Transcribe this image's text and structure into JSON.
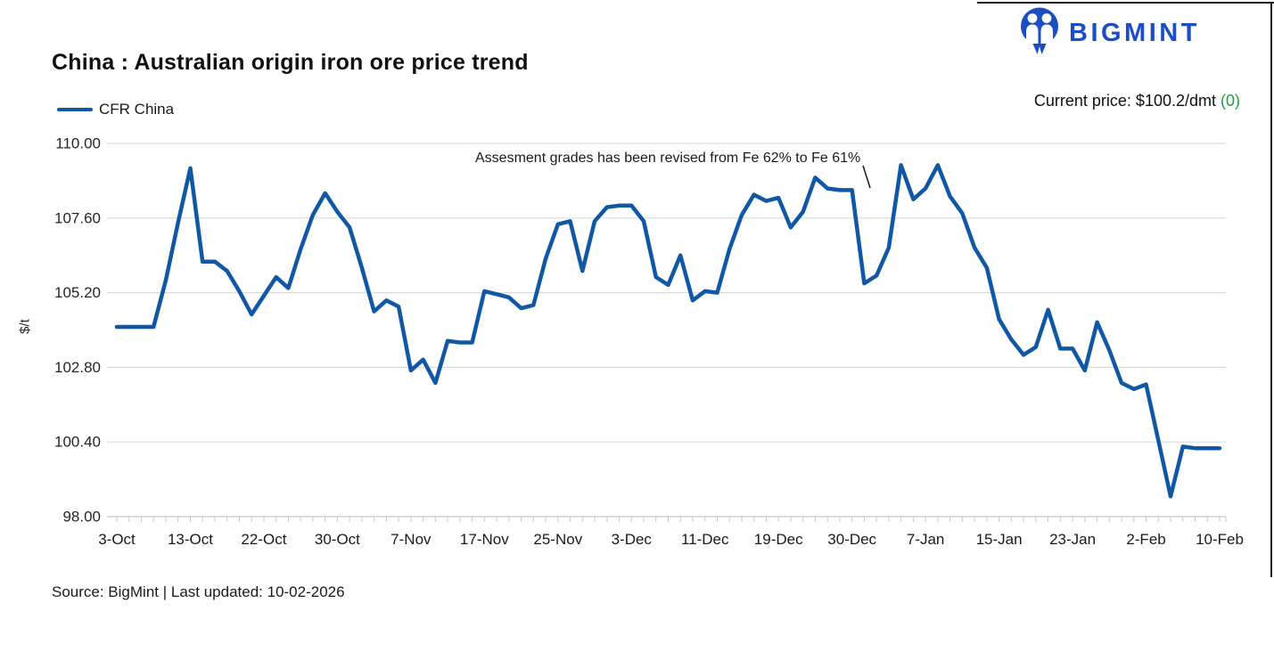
{
  "logo": {
    "brand": "BIGMINT"
  },
  "header": {
    "current_price_label": "Current price: $100.2/dmt ",
    "current_price_change": "(0)"
  },
  "footer": {
    "source": "Source: BigMint | Last updated: 10-02-2026"
  },
  "colors": {
    "line_blue": "#1057A5",
    "logo_blue": "#1B4DC4",
    "positive_green": "#21A038",
    "grid": "#DCDCDC",
    "axis": "#C8C8C8"
  },
  "chart_data": {
    "type": "line",
    "title": "China : Australian origin iron ore price trend",
    "ylabel": "$/t",
    "xlabel": "",
    "ylim": [
      98,
      110
    ],
    "yticks": [
      98,
      100.4,
      102.8,
      105.2,
      107.6,
      110
    ],
    "ytick_labels": [
      "98.00",
      "100.40",
      "102.80",
      "105.20",
      "107.60",
      "110.00"
    ],
    "x_labels": [
      "3-Oct",
      "13-Oct",
      "22-Oct",
      "30-Oct",
      "7-Nov",
      "17-Nov",
      "25-Nov",
      "3-Dec",
      "11-Dec",
      "19-Dec",
      "30-Dec",
      "7-Jan",
      "15-Jan",
      "23-Jan",
      "2-Feb",
      "10-Feb"
    ],
    "points_per_label": 6,
    "grid": true,
    "legend_position": "top-left",
    "series": [
      {
        "name": "CFR China",
        "color": "#1057A5",
        "values": [
          104.1,
          104.1,
          104.1,
          104.1,
          105.6,
          107.45,
          109.2,
          106.2,
          106.2,
          105.9,
          105.25,
          104.5,
          105.1,
          105.7,
          105.35,
          106.6,
          107.7,
          108.4,
          107.8,
          107.3,
          106.0,
          104.6,
          104.95,
          104.75,
          102.7,
          103.05,
          102.3,
          103.65,
          103.6,
          103.6,
          105.25,
          105.15,
          105.05,
          104.7,
          104.8,
          106.3,
          107.4,
          107.5,
          105.9,
          107.5,
          107.95,
          108.0,
          108.0,
          107.5,
          105.7,
          105.45,
          106.4,
          104.95,
          105.25,
          105.2,
          106.6,
          107.7,
          108.35,
          108.15,
          108.25,
          107.3,
          107.8,
          108.9,
          108.55,
          108.5,
          108.5,
          105.5,
          105.75,
          106.65,
          109.3,
          108.2,
          108.55,
          109.3,
          108.3,
          107.75,
          106.65,
          106.0,
          104.35,
          103.7,
          103.2,
          103.45,
          104.65,
          103.4,
          103.4,
          102.7,
          104.25,
          103.35,
          102.3,
          102.1,
          102.25,
          100.45,
          98.65,
          100.25,
          100.2,
          100.2,
          100.2
        ]
      }
    ],
    "annotation": {
      "text": "Assesment grades has been revised from Fe 62% to Fe 61%"
    }
  }
}
